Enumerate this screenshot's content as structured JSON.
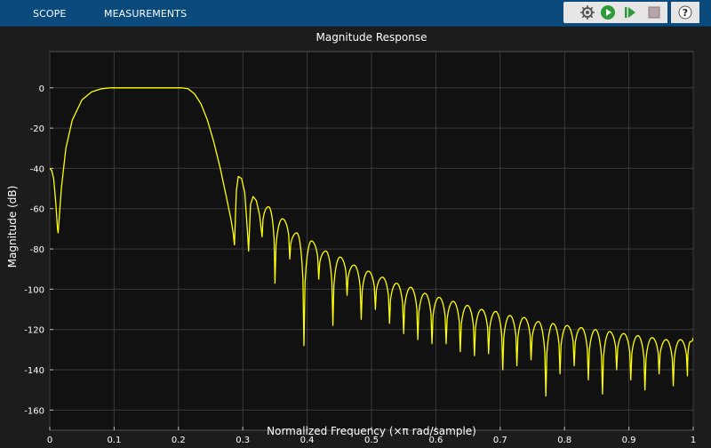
{
  "toolstrip": {
    "tabs": [
      {
        "label": "SCOPE"
      },
      {
        "label": "MEASUREMENTS"
      }
    ],
    "buttons": [
      {
        "icon": "configure-icon"
      },
      {
        "icon": "run-icon"
      },
      {
        "icon": "step-forward-icon"
      },
      {
        "icon": "stop-icon"
      },
      {
        "icon": "help-icon"
      }
    ]
  },
  "colors": {
    "toolstrip_bg": "#0b4a7c",
    "figure_bg": "#1c1c1c",
    "axes_bg": "#111111",
    "grid": "#3a3a3a",
    "trace": "#ffff00",
    "text": "#ffffff"
  },
  "chart_data": {
    "type": "line",
    "title": "Magnitude Response",
    "xlabel": "Normalized Frequency (×π rad/sample)",
    "ylabel": "Magnitude (dB)",
    "xlim": [
      0,
      1
    ],
    "ylim": [
      -170,
      18
    ],
    "xticks": [
      0,
      0.1,
      0.2,
      0.3,
      0.4,
      0.5,
      0.6,
      0.7,
      0.8,
      0.9,
      1
    ],
    "xtick_labels": [
      "0",
      "0.1",
      "0.2",
      "0.3",
      "0.4",
      "0.5",
      "0.6",
      "0.7",
      "0.8",
      "0.9",
      "1"
    ],
    "yticks": [
      0,
      -20,
      -40,
      -60,
      -80,
      -100,
      -120,
      -140,
      -160
    ],
    "ytick_labels": [
      "0",
      "-20",
      "-40",
      "-60",
      "-80",
      "-100",
      "-120",
      "-140",
      "-160"
    ],
    "grid": true,
    "series": [
      {
        "color": "#ffff00",
        "x": [
          0,
          0.003,
          0.006,
          0.008,
          0.01,
          0.012,
          0.013,
          0.018,
          0.025,
          0.035,
          0.05,
          0.065,
          0.08,
          0.095,
          0.11,
          0.13,
          0.15,
          0.17,
          0.19,
          0.205,
          0.215,
          0.225,
          0.235,
          0.245,
          0.255,
          0.265,
          0.275,
          0.282,
          0.285,
          0.287,
          0.29,
          0.293,
          0.298,
          0.303,
          0.307,
          0.309,
          0.312,
          0.316,
          0.321,
          0.326,
          0.33
        ],
        "y": [
          -40,
          -41,
          -45,
          -52,
          -60,
          -70,
          -72,
          -50,
          -30,
          -16,
          -6,
          -2,
          -0.5,
          0,
          0,
          0,
          0,
          0,
          0,
          0,
          -0.5,
          -3,
          -8,
          -16,
          -27,
          -40,
          -55,
          -66,
          -72,
          -78,
          -51,
          -44,
          -45,
          -52,
          -70,
          -81,
          -58,
          -54,
          -56,
          -63,
          -74
        ]
      }
    ],
    "sidelobes": [
      {
        "null": 0.33,
        "depth": -74
      },
      {
        "null": 0.35,
        "depth": -97
      },
      {
        "null": 0.373,
        "depth": -85
      },
      {
        "null": 0.395,
        "depth": -128
      },
      {
        "null": 0.418,
        "depth": -95
      },
      {
        "null": 0.44,
        "depth": -118
      },
      {
        "null": 0.462,
        "depth": -103
      },
      {
        "null": 0.484,
        "depth": -115
      },
      {
        "null": 0.506,
        "depth": -110
      },
      {
        "null": 0.528,
        "depth": -117
      },
      {
        "null": 0.55,
        "depth": -122
      },
      {
        "null": 0.572,
        "depth": -125
      },
      {
        "null": 0.594,
        "depth": -127
      },
      {
        "null": 0.616,
        "depth": -127
      },
      {
        "null": 0.638,
        "depth": -131
      },
      {
        "null": 0.66,
        "depth": -133
      },
      {
        "null": 0.682,
        "depth": -132
      },
      {
        "null": 0.704,
        "depth": -140
      },
      {
        "null": 0.726,
        "depth": -138
      },
      {
        "null": 0.748,
        "depth": -135
      },
      {
        "null": 0.771,
        "depth": -153
      },
      {
        "null": 0.793,
        "depth": -142
      },
      {
        "null": 0.815,
        "depth": -138
      },
      {
        "null": 0.837,
        "depth": -145
      },
      {
        "null": 0.859,
        "depth": -152
      },
      {
        "null": 0.881,
        "depth": -140
      },
      {
        "null": 0.903,
        "depth": -145
      },
      {
        "null": 0.925,
        "depth": -150
      },
      {
        "null": 0.947,
        "depth": -142
      },
      {
        "null": 0.969,
        "depth": -148
      },
      {
        "null": 0.991,
        "depth": -143
      },
      {
        "null": 1.0,
        "depth": -124
      }
    ],
    "sidelobe_peaks": [
      -59,
      -65,
      -72,
      -76,
      -81,
      -84,
      -88,
      -91,
      -94,
      -97,
      -99,
      -102,
      -104,
      -106,
      -108,
      -110,
      -111,
      -113,
      -114,
      -116,
      -117,
      -118,
      -119,
      -120,
      -121,
      -122,
      -123,
      -124,
      -125,
      -125,
      -126
    ]
  }
}
